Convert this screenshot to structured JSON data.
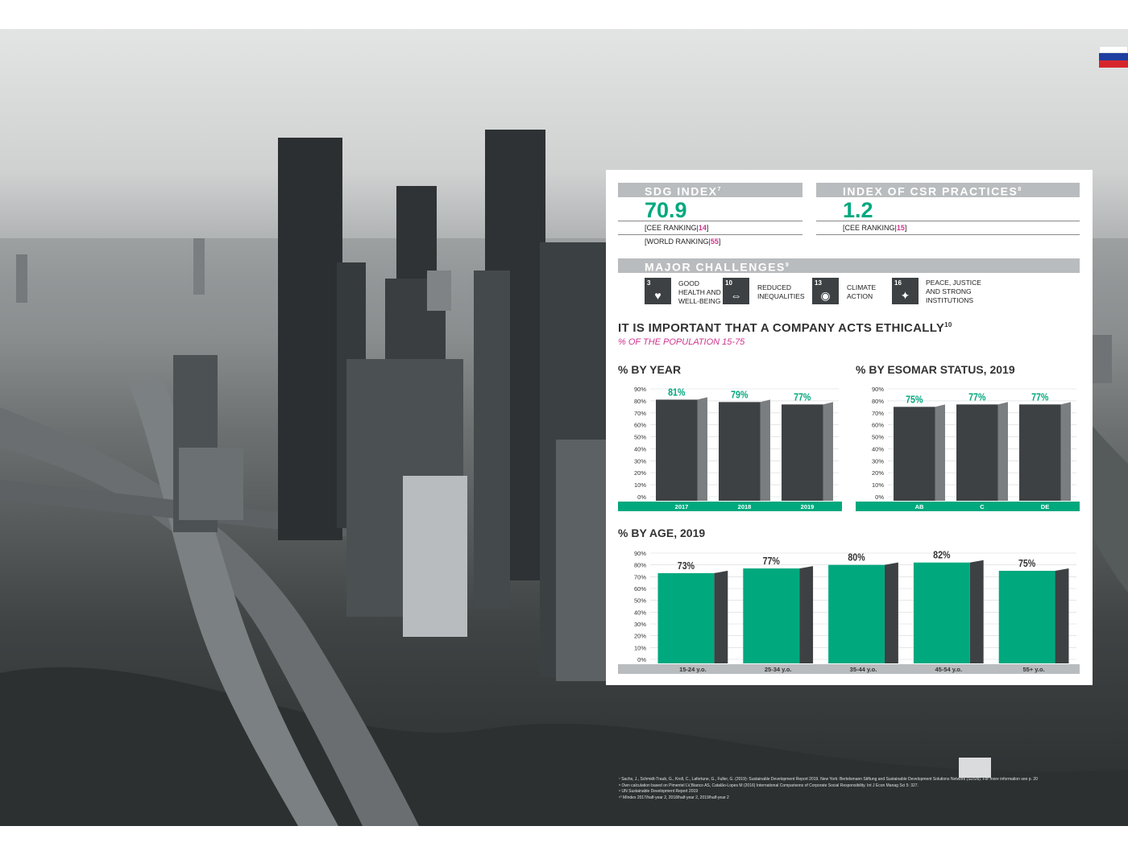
{
  "flag": {
    "colors": [
      "#ffffff",
      "#1f3fa0",
      "#d6262c"
    ]
  },
  "sdg_index": {
    "title": "SDG INDEX",
    "sup": "7",
    "value": "70.9",
    "cee_ranking_label": "[CEE RANKING|",
    "cee_ranking": "14",
    "world_ranking_label": "[WORLD RANKING|",
    "world_ranking": "55",
    "close": "]"
  },
  "csr_index": {
    "title": "INDEX OF CSR PRACTICES",
    "sup": "8",
    "value": "1.2",
    "cee_ranking_label": "[CEE RANKING|",
    "cee_ranking": "15",
    "close": "]"
  },
  "major_challenges": {
    "title": "MAJOR CHALLENGES",
    "sup": "9",
    "items": [
      {
        "number": "3",
        "icon": "heartbeat-icon",
        "label_lines": [
          "GOOD",
          "HEALTH AND",
          "WELL-BEING"
        ]
      },
      {
        "number": "10",
        "icon": "equality-arrows-icon",
        "label_lines": [
          "REDUCED",
          "INEQUALITIES"
        ]
      },
      {
        "number": "13",
        "icon": "eye-globe-icon",
        "label_lines": [
          "CLIMATE",
          "ACTION"
        ]
      },
      {
        "number": "16",
        "icon": "dove-gavel-icon",
        "label_lines": [
          "PEACE, JUSTICE",
          "AND STRONG",
          "INSTITUTIONS"
        ]
      }
    ]
  },
  "section": {
    "title": "IT IS IMPORTANT THAT A COMPANY ACTS ETHICALLY",
    "sup": "10",
    "subtitle": "% OF THE POPULATION 15-75"
  },
  "colors": {
    "accent": "#00a87e",
    "dark_bar": "#3d4143",
    "bar_side": "#7a7e80",
    "band_green": "#00a87e",
    "band_grey": "#b9bcbe",
    "pink": "#d0348f"
  },
  "chart_data": [
    {
      "type": "bar",
      "title": "% BY YEAR",
      "categories": [
        "2017",
        "2018",
        "2019"
      ],
      "values": [
        81,
        79,
        77
      ],
      "value_labels": [
        "81%",
        "79%",
        "77%"
      ],
      "ylim": [
        0,
        90
      ],
      "yticks": [
        "0%",
        "10%",
        "20%",
        "30%",
        "40%",
        "50%",
        "60%",
        "70%",
        "80%",
        "90%"
      ],
      "bar_color": "dark",
      "band": "green"
    },
    {
      "type": "bar",
      "title": "% BY ESOMAR STATUS, 2019",
      "categories": [
        "AB",
        "C",
        "DE"
      ],
      "values": [
        75,
        77,
        77
      ],
      "value_labels": [
        "75%",
        "77%",
        "77%"
      ],
      "ylim": [
        0,
        90
      ],
      "yticks": [
        "0%",
        "10%",
        "20%",
        "30%",
        "40%",
        "50%",
        "60%",
        "70%",
        "80%",
        "90%"
      ],
      "bar_color": "dark",
      "band": "green"
    },
    {
      "type": "bar",
      "title": "% BY AGE, 2019",
      "categories": [
        "15-24 y.o.",
        "25-34 y.o.",
        "35-44 y.o.",
        "45-54 y.o.",
        "55+ y.o."
      ],
      "values": [
        73,
        77,
        80,
        82,
        75
      ],
      "value_labels": [
        "73%",
        "77%",
        "80%",
        "82%",
        "75%"
      ],
      "ylim": [
        0,
        90
      ],
      "yticks": [
        "0%",
        "10%",
        "20%",
        "30%",
        "40%",
        "50%",
        "60%",
        "70%",
        "80%",
        "90%"
      ],
      "bar_color": "green",
      "band": "grey"
    }
  ],
  "footnotes": [
    "⁷ Sachs, J., Schmidt-Traub, G., Kroll, C., Lafortune, G., Fuller, G. (2019): Sustainable Development Report 2019. New York: Bertelsmann Stiftung and Sustainable Development Solutions Network (SDSN). For more information see p. 20",
    "⁸ Own calculation based on Pimentel LV,Bianco AS, Catalão-Lopes M (2016) International Comparisons of Corporate Social Responsibility. Int J Econ Manag Sci 5: 327.",
    "⁹ UN Sustainable Development Report 2019",
    "¹⁰ MIndex 2017/half-year 2, 2018/half-year 2, 2019/half-year 2"
  ]
}
